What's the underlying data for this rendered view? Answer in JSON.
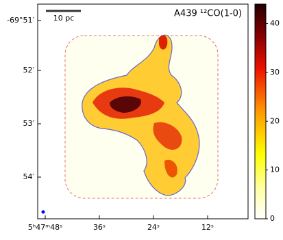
{
  "chart_data": {
    "type": "image",
    "title": "A439 ¹²CO(1-0)",
    "scale_bar": "10 pc",
    "x_tick_labels": [
      "5ʰ47ᵐ48ˢ",
      "36ˢ",
      "24ˢ",
      "12ˢ"
    ],
    "y_tick_labels": [
      "-69°51′",
      "52′",
      "53′",
      "54′"
    ],
    "colorbar": {
      "ylim": [
        0,
        44
      ],
      "yticks": [
        0,
        10,
        20,
        30,
        40
      ]
    }
  }
}
